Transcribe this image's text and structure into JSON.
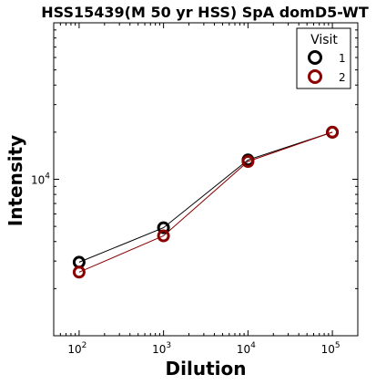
{
  "chart_data": {
    "type": "line",
    "title": "HSS15439(M 50 yr HSS) SpA domD5-WT",
    "xlabel": "Dilution",
    "ylabel": "Intensity",
    "x_scale": "log",
    "y_scale": "log",
    "xlim": [
      50,
      200000
    ],
    "ylim": [
      1000,
      100000
    ],
    "x_ticks": [
      100,
      1000,
      10000,
      100000
    ],
    "x_tick_labels": [
      {
        "base": "10",
        "exp": "2"
      },
      {
        "base": "10",
        "exp": "3"
      },
      {
        "base": "10",
        "exp": "4"
      },
      {
        "base": "10",
        "exp": "5"
      }
    ],
    "y_ticks": [
      10000
    ],
    "y_tick_labels": [
      {
        "base": "10",
        "exp": "4"
      }
    ],
    "grid": false,
    "legend": {
      "title": "Visit",
      "placement": "top-right"
    },
    "x": [
      100,
      1000,
      10000,
      100000
    ],
    "series": [
      {
        "name": "1",
        "color": "#000000",
        "values": [
          2950,
          4900,
          13300,
          20000
        ]
      },
      {
        "name": "2",
        "color": "#8b0000",
        "values": [
          2550,
          4350,
          13000,
          20000
        ]
      }
    ]
  }
}
